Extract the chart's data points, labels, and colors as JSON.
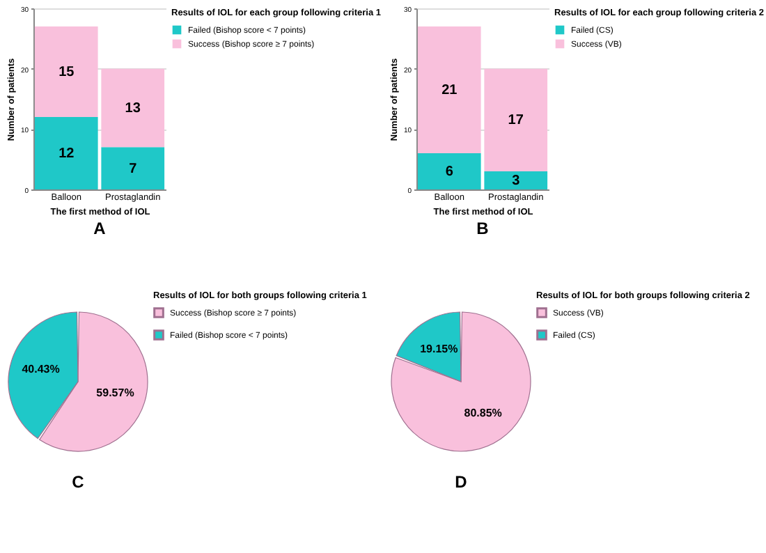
{
  "chart_data": [
    {
      "type": "bar",
      "title": "A",
      "legend_title": "Results of IOL for each group following criteria 1",
      "xlabel": "The first method of IOL",
      "ylabel": "Number of patients",
      "categories": [
        "Balloon",
        "Prostaglandin"
      ],
      "stacked": true,
      "series": [
        {
          "name": "Failed (Bishop score < 7 points)",
          "color": "#1fc8c8",
          "values": [
            12,
            7
          ]
        },
        {
          "name": "Success (Bishop score ≥ 7 points)",
          "color": "#f9c0dc",
          "values": [
            15,
            13
          ]
        }
      ],
      "ylim": [
        0,
        30
      ],
      "yticks": [
        0,
        10,
        20,
        30
      ],
      "grid": "y",
      "legend": "top right",
      "data_labels": true
    },
    {
      "type": "bar",
      "title": "B",
      "legend_title": "Results of IOL for each group following criteria 2",
      "xlabel": "The first method of IOL",
      "ylabel": "Number of patients",
      "categories": [
        "Balloon",
        "Prostaglandin"
      ],
      "stacked": true,
      "series": [
        {
          "name": "Failed (CS)",
          "color": "#1fc8c8",
          "values": [
            6,
            3
          ]
        },
        {
          "name": "Success (VB)",
          "color": "#f9c0dc",
          "values": [
            21,
            17
          ]
        }
      ],
      "ylim": [
        0,
        30
      ],
      "yticks": [
        0,
        10,
        20,
        30
      ],
      "grid": "y",
      "legend": "top right",
      "data_labels": true
    },
    {
      "type": "pie",
      "title": "C",
      "legend_title": "Results of IOL for both groups following criteria 1",
      "categories": [
        "Success (Bishop score ≥ 7 points)",
        "Failed (Bishop score < 7 points)"
      ],
      "values": [
        59.57,
        40.43
      ],
      "colors": [
        "#f9c0dc",
        "#1fc8c8"
      ],
      "value_labels": [
        "59.57%",
        "40.43%"
      ],
      "legend": "top right"
    },
    {
      "type": "pie",
      "title": "D",
      "legend_title": "Results of IOL for both groups following criteria 2",
      "categories": [
        "Success (VB)",
        "Failed (CS)"
      ],
      "values": [
        80.85,
        19.15
      ],
      "colors": [
        "#f9c0dc",
        "#1fc8c8"
      ],
      "value_labels": [
        "80.85%",
        "19.15%"
      ],
      "legend": "top right"
    }
  ]
}
